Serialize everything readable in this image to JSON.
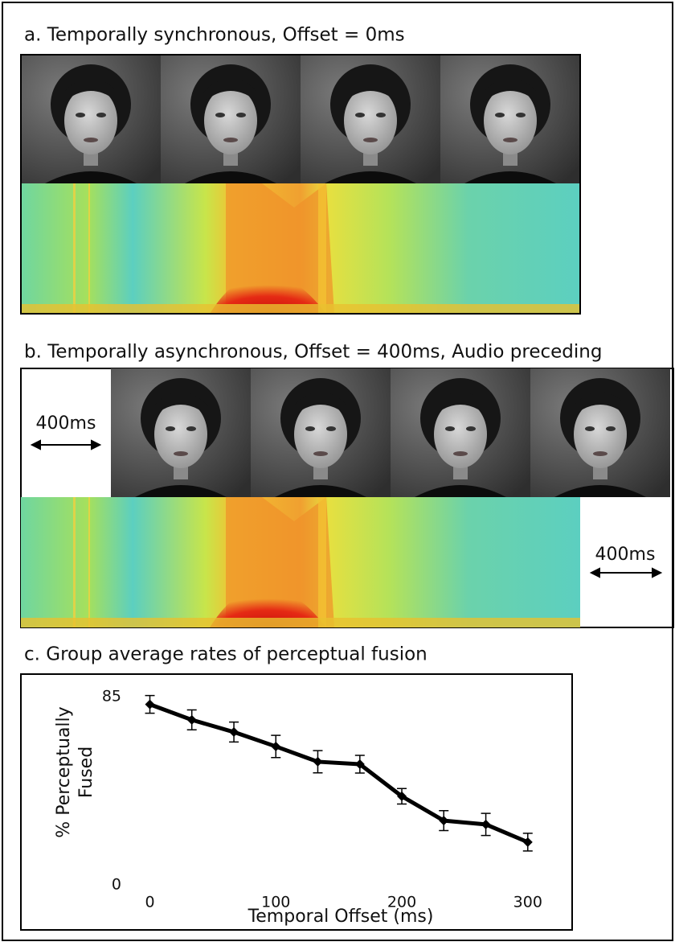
{
  "panel_a": {
    "title": "a. Temporally synchronous, Offset = 0ms"
  },
  "panel_b": {
    "title": "b. Temporally asynchronous, Offset = 400ms, Audio preceding",
    "video_offset_label": "400ms",
    "audio_offset_label": "400ms"
  },
  "panel_c": {
    "title": "c. Group average rates of perceptual fusion"
  },
  "chart_data": {
    "type": "line",
    "x": [
      0,
      33.3,
      66.7,
      100,
      133.3,
      166.7,
      200,
      233.3,
      266.7,
      300
    ],
    "values": [
      81.5,
      74.5,
      69,
      62.5,
      55.6,
      54.5,
      40,
      29,
      27.3,
      19.3
    ],
    "errors": [
      4,
      4.5,
      4.5,
      5,
      5,
      4,
      3.5,
      4.5,
      5,
      4
    ],
    "color": "#000000",
    "xlim": [
      -15,
      318
    ],
    "ylim": [
      0,
      85
    ],
    "xticks": [
      0,
      100,
      200,
      300
    ],
    "yticks": [
      0,
      85
    ],
    "xlabel": "Temporal Offset (ms)",
    "ylabel": [
      "% Perceptually",
      "Fused"
    ]
  }
}
